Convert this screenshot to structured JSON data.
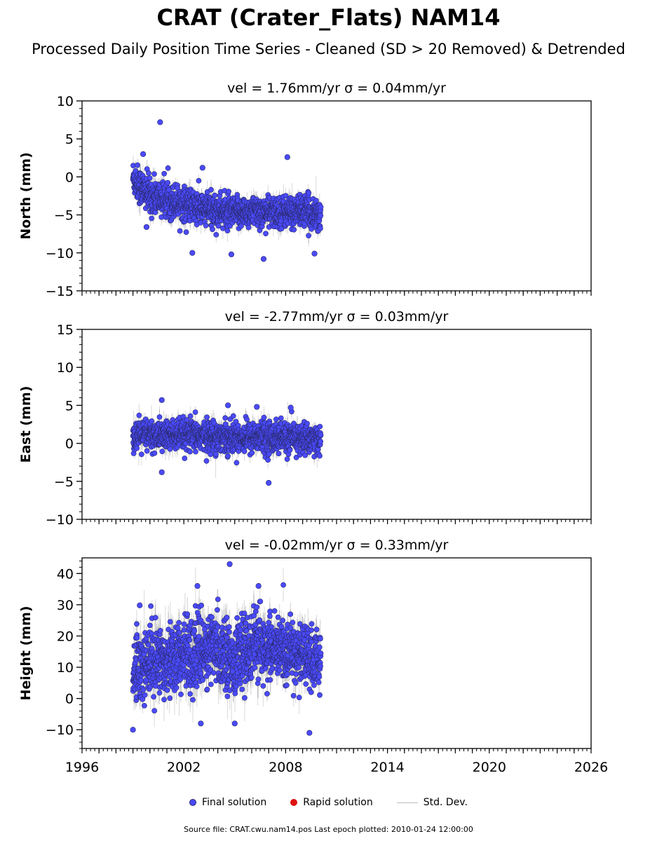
{
  "title": "CRAT (Crater_Flats) NAM14",
  "subtitle": "Processed Daily Position Time Series - Cleaned (SD > 20 Removed) & Detrended",
  "legend": {
    "final": "Final solution",
    "rapid": "Rapid solution",
    "std": "Std. Dev."
  },
  "source_text": "Source file: CRAT.cwu.nam14.pos  Last epoch plotted: 2010-01-24 12:00:00",
  "colors": {
    "final": "#4a4aff",
    "final_edge": "#2a2a6a",
    "rapid": "#dd1111",
    "std": "#bbbbbb"
  },
  "chart_data": [
    {
      "type": "scatter",
      "component": "north",
      "title": "vel = 1.76mm/yr   σ = 0.04mm/yr",
      "ylabel": "North (mm)",
      "xlim": [
        1996,
        2026
      ],
      "ylim": [
        -15,
        10
      ],
      "yticks": [
        -15,
        -10,
        -5,
        0,
        5,
        10
      ],
      "xticks": [
        1996,
        2002,
        2008,
        2014,
        2020,
        2026
      ],
      "show_xtick_labels": false,
      "data_range": [
        1999.0,
        2010.07
      ],
      "cloud": [
        {
          "x": 1999.0,
          "mean": 0.0,
          "spread": 2.0
        },
        {
          "x": 1999.5,
          "mean": -1.5,
          "spread": 2.2
        },
        {
          "x": 2000.0,
          "mean": -2.5,
          "spread": 2.2
        },
        {
          "x": 2001.0,
          "mean": -3.0,
          "spread": 2.0
        },
        {
          "x": 2002.0,
          "mean": -3.5,
          "spread": 2.0
        },
        {
          "x": 2003.0,
          "mean": -4.2,
          "spread": 2.0
        },
        {
          "x": 2004.0,
          "mean": -4.5,
          "spread": 2.0
        },
        {
          "x": 2005.0,
          "mean": -4.8,
          "spread": 1.8
        },
        {
          "x": 2006.0,
          "mean": -4.5,
          "spread": 1.8
        },
        {
          "x": 2007.0,
          "mean": -4.7,
          "spread": 1.8
        },
        {
          "x": 2008.0,
          "mean": -4.6,
          "spread": 1.8
        },
        {
          "x": 2009.0,
          "mean": -4.5,
          "spread": 1.8
        },
        {
          "x": 2010.07,
          "mean": -5.0,
          "spread": 2.0
        }
      ],
      "outliers": [
        {
          "x": 1999.6,
          "y": 3.0
        },
        {
          "x": 2000.6,
          "y": 7.2
        },
        {
          "x": 2002.5,
          "y": -10.0
        },
        {
          "x": 2003.1,
          "y": 1.2
        },
        {
          "x": 2004.8,
          "y": -10.2
        },
        {
          "x": 2006.7,
          "y": -10.8
        },
        {
          "x": 2008.1,
          "y": 2.6
        },
        {
          "x": 2009.7,
          "y": -10.1
        },
        {
          "x": 1999.8,
          "y": -6.6
        }
      ]
    },
    {
      "type": "scatter",
      "component": "east",
      "title": "vel = -2.77mm/yr   σ = 0.03mm/yr",
      "ylabel": "East (mm)",
      "xlim": [
        1996,
        2026
      ],
      "ylim": [
        -10,
        15
      ],
      "yticks": [
        -10,
        -5,
        0,
        5,
        10,
        15
      ],
      "xticks": [
        1996,
        2002,
        2008,
        2014,
        2020,
        2026
      ],
      "show_xtick_labels": false,
      "data_range": [
        1999.0,
        2010.07
      ],
      "cloud": [
        {
          "x": 1999.0,
          "mean": 1.0,
          "spread": 1.8
        },
        {
          "x": 2001.0,
          "mean": 1.0,
          "spread": 1.8
        },
        {
          "x": 2003.0,
          "mean": 1.0,
          "spread": 1.8
        },
        {
          "x": 2005.0,
          "mean": 0.8,
          "spread": 1.8
        },
        {
          "x": 2007.0,
          "mean": 0.8,
          "spread": 1.8
        },
        {
          "x": 2009.0,
          "mean": 0.6,
          "spread": 1.8
        },
        {
          "x": 2010.07,
          "mean": 0.5,
          "spread": 1.8
        }
      ],
      "outliers": [
        {
          "x": 2000.7,
          "y": 5.7
        },
        {
          "x": 2000.7,
          "y": -3.8
        },
        {
          "x": 2004.6,
          "y": 5.0
        },
        {
          "x": 2006.3,
          "y": 4.8
        },
        {
          "x": 2007.0,
          "y": -5.2
        },
        {
          "x": 2008.3,
          "y": 4.7
        }
      ]
    },
    {
      "type": "scatter",
      "component": "height",
      "title": "vel = -0.02mm/yr   σ = 0.33mm/yr",
      "ylabel": "Height (mm)",
      "xlim": [
        1996,
        2026
      ],
      "ylim": [
        -16,
        45
      ],
      "yticks": [
        -10,
        0,
        10,
        20,
        30,
        40
      ],
      "xticks": [
        1996,
        2002,
        2008,
        2014,
        2020,
        2026
      ],
      "show_xtick_labels": true,
      "data_range": [
        1999.0,
        2010.07
      ],
      "cloud": [
        {
          "x": 1999.0,
          "mean": 9.0,
          "spread": 10.0
        },
        {
          "x": 2000.0,
          "mean": 12.0,
          "spread": 10.0
        },
        {
          "x": 2001.0,
          "mean": 13.0,
          "spread": 10.0
        },
        {
          "x": 2002.0,
          "mean": 14.0,
          "spread": 10.0
        },
        {
          "x": 2003.0,
          "mean": 15.0,
          "spread": 10.0
        },
        {
          "x": 2004.0,
          "mean": 16.0,
          "spread": 10.0
        },
        {
          "x": 2005.0,
          "mean": 12.0,
          "spread": 9.0
        },
        {
          "x": 2006.0,
          "mean": 17.0,
          "spread": 10.0
        },
        {
          "x": 2007.0,
          "mean": 16.0,
          "spread": 9.0
        },
        {
          "x": 2008.0,
          "mean": 15.0,
          "spread": 9.0
        },
        {
          "x": 2009.0,
          "mean": 14.0,
          "spread": 9.0
        },
        {
          "x": 2010.07,
          "mean": 11.0,
          "spread": 8.0
        }
      ],
      "outliers": [
        {
          "x": 2004.7,
          "y": 43.0
        },
        {
          "x": 2006.4,
          "y": 36.0
        },
        {
          "x": 2002.8,
          "y": 36.0
        },
        {
          "x": 1999.4,
          "y": 29.8
        },
        {
          "x": 2009.4,
          "y": -11.0
        },
        {
          "x": 1999.0,
          "y": -10.0
        },
        {
          "x": 2005.0,
          "y": -8.0
        },
        {
          "x": 2003.0,
          "y": -8.0
        }
      ]
    }
  ]
}
